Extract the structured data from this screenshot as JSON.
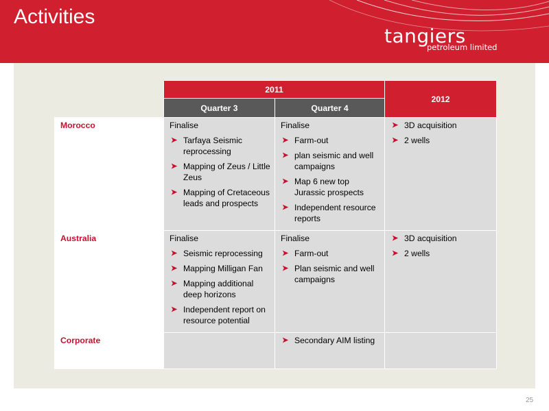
{
  "slide": {
    "title": "Activities",
    "page_number": "25"
  },
  "logo": {
    "name": "tangiers",
    "subtitle": "petroleum limited"
  },
  "table": {
    "header_2011": "2011",
    "header_2012": "2012",
    "header_q3": "Quarter 3",
    "header_q4": "Quarter 4",
    "rows": [
      {
        "label": "Morocco",
        "q3": {
          "intro": "Finalise",
          "items": [
            "Tarfaya Seismic reprocessing",
            "Mapping of Zeus / Little Zeus",
            "Mapping of Cretaceous leads and prospects"
          ]
        },
        "q4": {
          "intro": "Finalise",
          "items": [
            "Farm-out",
            "plan seismic and well campaigns",
            "Map 6 new top Jurassic  prospects",
            "Independent resource reports"
          ]
        },
        "y2012": {
          "items": [
            "3D acquisition",
            "2 wells"
          ]
        }
      },
      {
        "label": "Australia",
        "q3": {
          "intro": "Finalise",
          "items": [
            "Seismic reprocessing",
            "Mapping Milligan Fan",
            "Mapping additional deep horizons",
            "Independent report on resource potential"
          ]
        },
        "q4": {
          "intro": "Finalise",
          "items": [
            "Farm-out",
            "Plan seismic and well campaigns"
          ]
        },
        "y2012": {
          "items": [
            "3D acquisition",
            "2 wells"
          ]
        }
      },
      {
        "label": "Corporate",
        "q4": {
          "items": [
            "Secondary AIM listing"
          ]
        }
      }
    ]
  },
  "colors": {
    "brand_red": "#d01f2e",
    "label_red": "#c8102e",
    "header_dark": "#595959",
    "cell_grey": "#dcdcdc",
    "panel_beige": "#ecebe2"
  },
  "icons": {
    "bullet": "chevron-right-icon"
  }
}
